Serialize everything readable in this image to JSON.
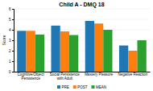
{
  "chart_data": {
    "type": "bar",
    "title": "Child A - DMQ 18",
    "categories": [
      "Cognitive/Object\nPersistence",
      "Social Persistence\nwith Adult",
      "Mastery Pleasure",
      "Negative Reaction"
    ],
    "series": [
      {
        "name": "PRE",
        "values": [
          3.9,
          4.4,
          4.85,
          2.5
        ]
      },
      {
        "name": "POST",
        "values": [
          3.9,
          3.85,
          4.6,
          2.0
        ]
      },
      {
        "name": "MEAN",
        "values": [
          3.55,
          3.5,
          4.0,
          3.0
        ]
      }
    ],
    "ylabel": "Score",
    "ylim": [
      0,
      6
    ],
    "yticks": [
      0,
      1,
      2,
      3,
      4,
      5,
      6
    ],
    "grid": true,
    "legend": "bottom"
  }
}
